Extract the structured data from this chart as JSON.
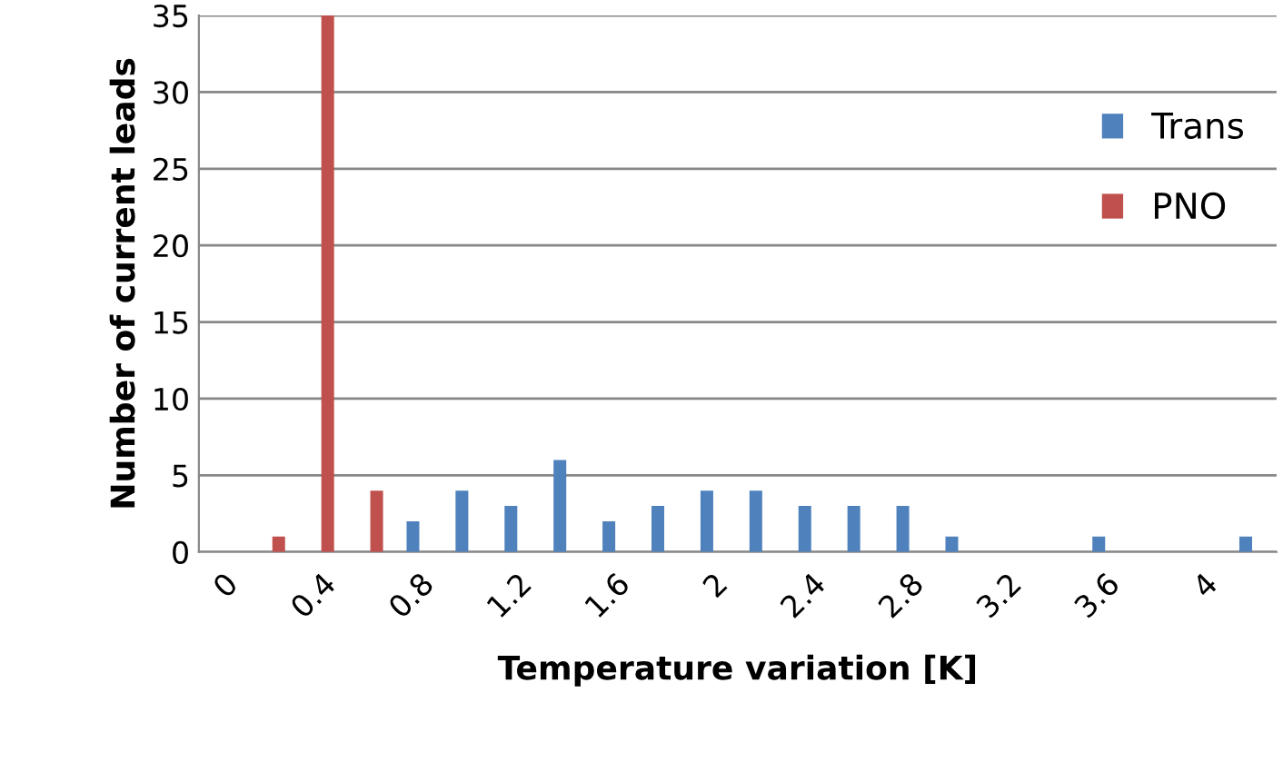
{
  "chart_data": {
    "type": "bar",
    "xlabel": "Temperature variation [K]",
    "ylabel": "Number of current leads",
    "categories": [
      "0",
      null,
      "0.4",
      null,
      "0.8",
      null,
      "1.2",
      null,
      "1.6",
      null,
      "2",
      null,
      "2.4",
      null,
      "2.8",
      null,
      "3.2",
      null,
      "3.6",
      null,
      "4",
      null
    ],
    "series": [
      {
        "name": "Trans",
        "color": "#4f81bd",
        "values": [
          null,
          null,
          null,
          null,
          2,
          4,
          3,
          6,
          2,
          3,
          4,
          4,
          3,
          3,
          3,
          1,
          null,
          null,
          1,
          null,
          null,
          1
        ]
      },
      {
        "name": "PNO",
        "color": "#c0504d",
        "values": [
          null,
          1,
          35,
          4,
          null,
          null,
          null,
          null,
          null,
          null,
          null,
          null,
          null,
          null,
          null,
          null,
          null,
          null,
          null,
          null,
          null,
          null
        ]
      }
    ],
    "ylim": [
      0,
      35
    ],
    "yticks": [
      0,
      5,
      10,
      15,
      20,
      25,
      30,
      35
    ],
    "grid": "y",
    "legend": "top right"
  }
}
